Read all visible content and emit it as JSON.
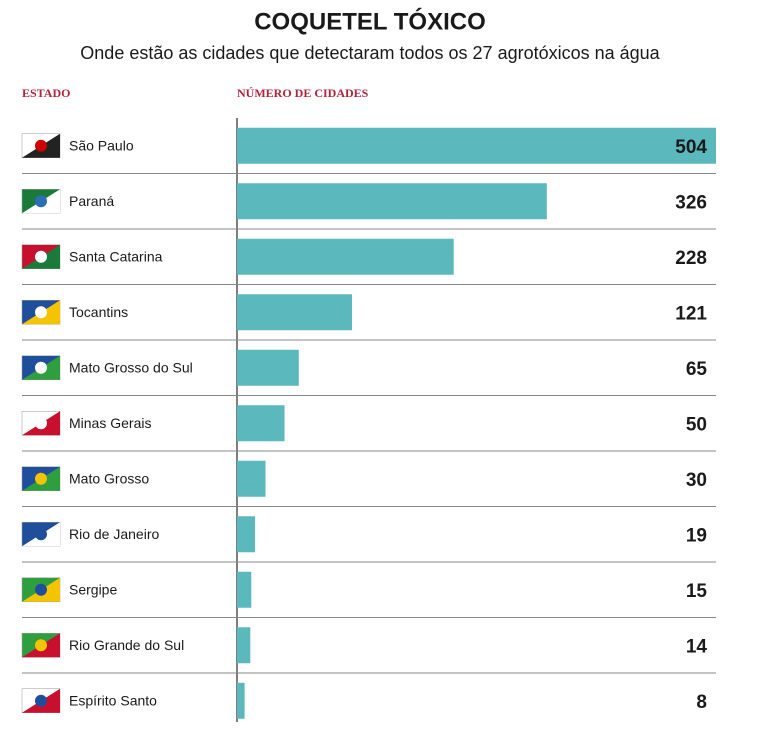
{
  "chart_data": {
    "type": "bar",
    "orientation": "horizontal",
    "title": "COQUETEL TÓXICO",
    "subtitle": "Onde estão as cidades que detectaram todos os 27 agrotóxicos na água",
    "category_header": "ESTADO",
    "value_header": "NÚMERO DE CIDADES",
    "categories": [
      "São Paulo",
      "Paraná",
      "Santa Catarina",
      "Tocantins",
      "Mato Grosso do Sul",
      "Minas Gerais",
      "Mato Grosso",
      "Rio de Janeiro",
      "Sergipe",
      "Rio Grande do Sul",
      "Espírito Santo"
    ],
    "values": [
      504,
      326,
      228,
      121,
      65,
      50,
      30,
      19,
      15,
      14,
      8
    ],
    "color": "#5bb8bc",
    "xlim": [
      0,
      504
    ]
  }
}
